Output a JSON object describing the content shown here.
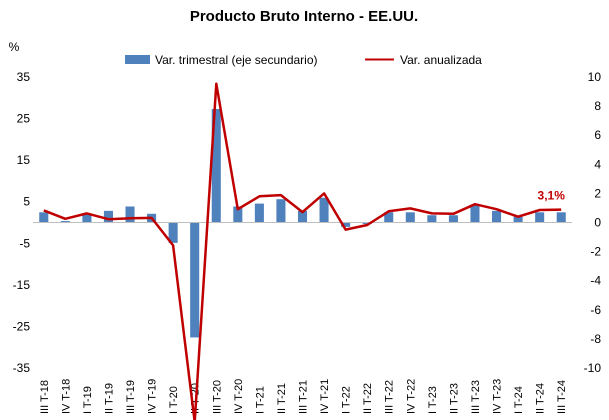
{
  "chart_data": {
    "type": "bar",
    "title": "Producto Bruto Interno - EE.UU.",
    "ylabel": "%",
    "categories": [
      "III T-18",
      "IV T-18",
      "I T-19",
      "II T-19",
      "III T-19",
      "IV T-19",
      "I T-20",
      "II T-20",
      "III T-20",
      "IV T-20",
      "I T-21",
      "II T-21",
      "III T-21",
      "IV T-21",
      "I T-22",
      "II T-22",
      "III T-22",
      "IV T-22",
      "I T-23",
      "II T-23",
      "III T-23",
      "IV T-23",
      "I T-24",
      "II T-24",
      "III T-24"
    ],
    "primary_axis": {
      "ylim": [
        -35,
        35
      ],
      "ticks": [
        "35",
        "25",
        "15",
        "5",
        "-5",
        "-15",
        "-25",
        "-35"
      ]
    },
    "secondary_axis": {
      "ylim": [
        -10,
        10
      ],
      "ticks": [
        "10",
        "8",
        "6",
        "4",
        "2",
        "0",
        "-2",
        "-4",
        "-6",
        "-8",
        "-10"
      ]
    },
    "series": [
      {
        "name": "Var. trimestral (eje secundario)",
        "type": "bar",
        "axis": "secondary",
        "color": "#4f81bd",
        "values": [
          0.7,
          0.1,
          0.6,
          0.8,
          1.1,
          0.6,
          -1.4,
          -7.9,
          7.8,
          1.1,
          1.3,
          1.6,
          0.8,
          1.7,
          -0.3,
          -0.1,
          0.7,
          0.7,
          0.5,
          0.5,
          1.2,
          0.8,
          0.4,
          0.7,
          0.7
        ]
      },
      {
        "name": "Var. anualizada",
        "type": "line",
        "axis": "primary",
        "color": "#c00000",
        "values": [
          2.9,
          0.9,
          2.2,
          0.8,
          1.0,
          1.1,
          -5.5,
          -48.0,
          33.4,
          3.2,
          6.3,
          6.6,
          2.5,
          7.0,
          -1.7,
          -0.6,
          2.7,
          3.4,
          2.2,
          2.1,
          4.4,
          3.2,
          1.4,
          3.0,
          3.1
        ]
      }
    ],
    "annotations": [
      {
        "text": "3,1%",
        "color": "#c00000"
      }
    ],
    "legend_position": "top",
    "grid": false
  }
}
